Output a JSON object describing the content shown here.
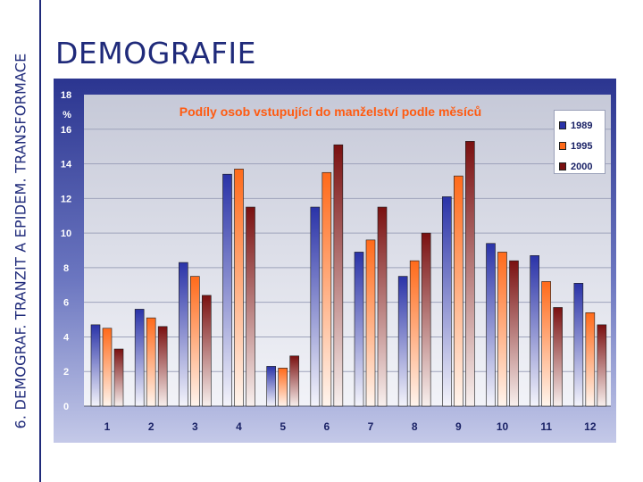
{
  "side_title": "6. DEMOGRAF. TRANZIT A EPIDEM. TRANSFORMACE",
  "slide_title": "DEMOGRAFIE",
  "chart_data": {
    "type": "bar",
    "title": "Podíly osob vstupující do manželství podle měsíců",
    "ylabel": "%",
    "xlabel": "",
    "ylim": [
      0,
      18
    ],
    "yticks": [
      0,
      2,
      4,
      6,
      8,
      10,
      12,
      14,
      16,
      18
    ],
    "categories": [
      "1",
      "2",
      "3",
      "4",
      "5",
      "6",
      "7",
      "8",
      "9",
      "10",
      "11",
      "12"
    ],
    "grid": true,
    "legend_position": "top-right",
    "series": [
      {
        "name": "1989",
        "color": "#2a33a8",
        "values": [
          4.7,
          5.6,
          8.3,
          13.4,
          2.3,
          11.5,
          8.9,
          7.5,
          12.1,
          9.4,
          8.7,
          7.1
        ]
      },
      {
        "name": "1995",
        "color": "#ff6a1a",
        "values": [
          4.5,
          5.1,
          7.5,
          13.7,
          2.2,
          13.5,
          9.6,
          8.4,
          13.3,
          8.9,
          7.2,
          5.4
        ]
      },
      {
        "name": "2000",
        "color": "#7a1010",
        "values": [
          3.3,
          4.6,
          6.4,
          11.5,
          2.9,
          15.1,
          11.5,
          10.0,
          15.3,
          8.4,
          5.7,
          4.7
        ]
      }
    ]
  }
}
